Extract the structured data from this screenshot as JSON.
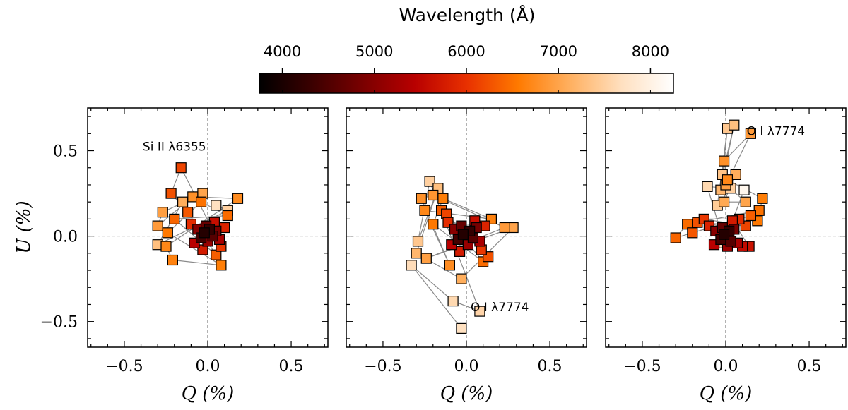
{
  "colorbar": {
    "title": "Wavelength (Å)",
    "ticks": [
      4000,
      5000,
      6000,
      7000,
      8000
    ],
    "tick_labels": [
      "4000",
      "5000",
      "6000",
      "7000",
      "8000"
    ],
    "range": [
      3750,
      8250
    ],
    "colormap_stops": [
      "#000000",
      "#3a0000",
      "#7a0000",
      "#b80000",
      "#e83000",
      "#ff7a00",
      "#ffb060",
      "#ffe0c0",
      "#ffffff"
    ]
  },
  "axes": {
    "xlabel": "Q (%)",
    "ylabel": "U (%)",
    "xlim": [
      -0.72,
      0.72
    ],
    "ylim": [
      -0.65,
      0.75
    ],
    "xticks": [
      -0.5,
      0.0,
      0.5
    ],
    "xtick_labels": [
      "−0.5",
      "0.0",
      "0.5"
    ],
    "yticks": [
      -0.5,
      0.0,
      0.5
    ],
    "ytick_labels": [
      "−0.5",
      "0.0",
      "0.5"
    ]
  },
  "chart_data": [
    {
      "type": "scatter",
      "title": "",
      "annotations": [
        {
          "text": "Si II λ6355",
          "x": -0.2,
          "y": 0.5
        }
      ],
      "points": [
        {
          "q": -0.02,
          "u": 0.02,
          "w": 4100
        },
        {
          "q": 0.01,
          "u": 0.04,
          "w": 4250
        },
        {
          "q": -0.04,
          "u": -0.01,
          "w": 4400
        },
        {
          "q": 0.03,
          "u": 0.0,
          "w": 4550
        },
        {
          "q": -0.01,
          "u": 0.06,
          "w": 4700
        },
        {
          "q": 0.05,
          "u": 0.03,
          "w": 4850
        },
        {
          "q": -0.06,
          "u": 0.04,
          "w": 5000
        },
        {
          "q": 0.0,
          "u": -0.03,
          "w": 5150
        },
        {
          "q": 0.07,
          "u": -0.02,
          "w": 5300
        },
        {
          "q": -0.08,
          "u": -0.04,
          "w": 5450
        },
        {
          "q": 0.04,
          "u": 0.08,
          "w": 5600
        },
        {
          "q": -0.03,
          "u": -0.08,
          "w": 5750
        },
        {
          "q": 0.1,
          "u": 0.05,
          "w": 5850
        },
        {
          "q": -0.1,
          "u": 0.07,
          "w": 5950
        },
        {
          "q": 0.08,
          "u": -0.06,
          "w": 6050
        },
        {
          "q": -0.16,
          "u": 0.4,
          "w": 6150
        },
        {
          "q": -0.22,
          "u": 0.25,
          "w": 6250
        },
        {
          "q": -0.12,
          "u": 0.14,
          "w": 6300
        },
        {
          "q": 0.05,
          "u": -0.11,
          "w": 6350
        },
        {
          "q": -0.2,
          "u": 0.1,
          "w": 6400
        },
        {
          "q": 0.12,
          "u": 0.12,
          "w": 6450
        },
        {
          "q": -0.04,
          "u": 0.2,
          "w": 6500
        },
        {
          "q": -0.24,
          "u": 0.02,
          "w": 6550
        },
        {
          "q": 0.08,
          "u": -0.17,
          "w": 6600
        },
        {
          "q": -0.21,
          "u": -0.14,
          "w": 6650
        },
        {
          "q": -0.25,
          "u": -0.06,
          "w": 6700
        },
        {
          "q": 0.18,
          "u": 0.22,
          "w": 6750
        },
        {
          "q": -0.09,
          "u": 0.23,
          "w": 6800
        },
        {
          "q": -0.3,
          "u": 0.06,
          "w": 6900
        },
        {
          "q": -0.27,
          "u": 0.14,
          "w": 6950
        },
        {
          "q": -0.03,
          "u": 0.25,
          "w": 7000
        },
        {
          "q": -0.15,
          "u": 0.2,
          "w": 7100
        },
        {
          "q": -0.3,
          "u": -0.05,
          "w": 7300
        },
        {
          "q": 0.12,
          "u": 0.15,
          "w": 7500
        },
        {
          "q": 0.05,
          "u": 0.18,
          "w": 7700
        }
      ]
    },
    {
      "type": "scatter",
      "title": "",
      "annotations": [
        {
          "text": "O I λ7774",
          "x": 0.2,
          "y": -0.44
        }
      ],
      "points": [
        {
          "q": -0.02,
          "u": 0.01,
          "w": 4100
        },
        {
          "q": 0.02,
          "u": 0.03,
          "w": 4250
        },
        {
          "q": -0.05,
          "u": -0.02,
          "w": 4400
        },
        {
          "q": 0.04,
          "u": -0.01,
          "w": 4550
        },
        {
          "q": -0.03,
          "u": 0.06,
          "w": 4700
        },
        {
          "q": 0.06,
          "u": 0.05,
          "w": 4850
        },
        {
          "q": -0.07,
          "u": 0.04,
          "w": 5000
        },
        {
          "q": 0.01,
          "u": -0.05,
          "w": 5150
        },
        {
          "q": 0.08,
          "u": -0.03,
          "w": 5300
        },
        {
          "q": -0.09,
          "u": -0.05,
          "w": 5450
        },
        {
          "q": 0.05,
          "u": 0.09,
          "w": 5600
        },
        {
          "q": -0.04,
          "u": -0.09,
          "w": 5750
        },
        {
          "q": 0.11,
          "u": 0.06,
          "w": 5850
        },
        {
          "q": -0.11,
          "u": 0.08,
          "w": 5950
        },
        {
          "q": 0.09,
          "u": -0.08,
          "w": 6050
        },
        {
          "q": -0.12,
          "u": 0.13,
          "w": 6150
        },
        {
          "q": 0.13,
          "u": -0.12,
          "w": 6250
        },
        {
          "q": -0.15,
          "u": 0.15,
          "w": 6350
        },
        {
          "q": 0.1,
          "u": -0.15,
          "w": 6450
        },
        {
          "q": -0.2,
          "u": 0.07,
          "w": 6550
        },
        {
          "q": -0.14,
          "u": 0.22,
          "w": 6600
        },
        {
          "q": 0.15,
          "u": 0.1,
          "w": 6650
        },
        {
          "q": -0.25,
          "u": 0.15,
          "w": 6700
        },
        {
          "q": -0.1,
          "u": -0.17,
          "w": 6750
        },
        {
          "q": -0.27,
          "u": 0.22,
          "w": 6800
        },
        {
          "q": -0.2,
          "u": 0.24,
          "w": 6850
        },
        {
          "q": 0.23,
          "u": 0.05,
          "w": 6900
        },
        {
          "q": -0.24,
          "u": -0.13,
          "w": 6950
        },
        {
          "q": 0.28,
          "u": 0.05,
          "w": 7000
        },
        {
          "q": -0.03,
          "u": -0.25,
          "w": 7100
        },
        {
          "q": -0.3,
          "u": -0.1,
          "w": 7200
        },
        {
          "q": -0.17,
          "u": 0.28,
          "w": 7300
        },
        {
          "q": -0.29,
          "u": -0.03,
          "w": 7400
        },
        {
          "q": -0.22,
          "u": 0.32,
          "w": 7500
        },
        {
          "q": 0.08,
          "u": -0.44,
          "w": 7550
        },
        {
          "q": -0.08,
          "u": -0.38,
          "w": 7600
        },
        {
          "q": -0.33,
          "u": -0.17,
          "w": 7650
        },
        {
          "q": -0.03,
          "u": -0.54,
          "w": 7700
        }
      ]
    },
    {
      "type": "scatter",
      "title": "",
      "annotations": [
        {
          "text": "O I λ7774",
          "x": 0.3,
          "y": 0.59
        }
      ],
      "points": [
        {
          "q": -0.01,
          "u": 0.01,
          "w": 4100
        },
        {
          "q": 0.02,
          "u": 0.03,
          "w": 4250
        },
        {
          "q": -0.03,
          "u": -0.02,
          "w": 4400
        },
        {
          "q": 0.03,
          "u": -0.03,
          "w": 4550
        },
        {
          "q": -0.02,
          "u": 0.05,
          "w": 4700
        },
        {
          "q": 0.05,
          "u": 0.04,
          "w": 4850
        },
        {
          "q": -0.06,
          "u": 0.03,
          "w": 5000
        },
        {
          "q": 0.01,
          "u": -0.06,
          "w": 5150
        },
        {
          "q": 0.07,
          "u": -0.04,
          "w": 5300
        },
        {
          "q": -0.07,
          "u": -0.05,
          "w": 5450
        },
        {
          "q": 0.1,
          "u": -0.06,
          "w": 5550
        },
        {
          "q": 0.14,
          "u": -0.06,
          "w": 5650
        },
        {
          "q": 0.04,
          "u": 0.09,
          "w": 5750
        },
        {
          "q": -0.1,
          "u": 0.06,
          "w": 5850
        },
        {
          "q": 0.08,
          "u": 0.1,
          "w": 5950
        },
        {
          "q": -0.13,
          "u": 0.1,
          "w": 6050
        },
        {
          "q": 0.12,
          "u": 0.06,
          "w": 6150
        },
        {
          "q": -0.17,
          "u": 0.08,
          "w": 6250
        },
        {
          "q": -0.2,
          "u": 0.02,
          "w": 6300
        },
        {
          "q": 0.15,
          "u": 0.12,
          "w": 6350
        },
        {
          "q": -0.3,
          "u": -0.01,
          "w": 6400
        },
        {
          "q": -0.23,
          "u": 0.07,
          "w": 6450
        },
        {
          "q": 0.2,
          "u": 0.15,
          "w": 6500
        },
        {
          "q": 0.19,
          "u": 0.09,
          "w": 6550
        },
        {
          "q": 0.22,
          "u": 0.22,
          "w": 6600
        },
        {
          "q": 0.01,
          "u": 0.33,
          "w": 6700
        },
        {
          "q": -0.01,
          "u": 0.44,
          "w": 6800
        },
        {
          "q": 0.15,
          "u": 0.6,
          "w": 6900
        },
        {
          "q": 0.0,
          "u": 0.3,
          "w": 6950
        },
        {
          "q": 0.12,
          "u": 0.2,
          "w": 7000
        },
        {
          "q": -0.01,
          "u": 0.2,
          "w": 7050
        },
        {
          "q": 0.06,
          "u": 0.36,
          "w": 7100
        },
        {
          "q": -0.03,
          "u": 0.27,
          "w": 7200
        },
        {
          "q": 0.05,
          "u": 0.65,
          "w": 7300
        },
        {
          "q": -0.02,
          "u": 0.36,
          "w": 7350
        },
        {
          "q": 0.01,
          "u": 0.63,
          "w": 7400
        },
        {
          "q": -0.05,
          "u": 0.18,
          "w": 7450
        },
        {
          "q": 0.03,
          "u": 0.28,
          "w": 7500
        },
        {
          "q": -0.11,
          "u": 0.29,
          "w": 7600
        },
        {
          "q": -0.01,
          "u": -0.04,
          "w": 7700
        },
        {
          "q": 0.11,
          "u": 0.27,
          "w": 8100
        }
      ]
    }
  ]
}
